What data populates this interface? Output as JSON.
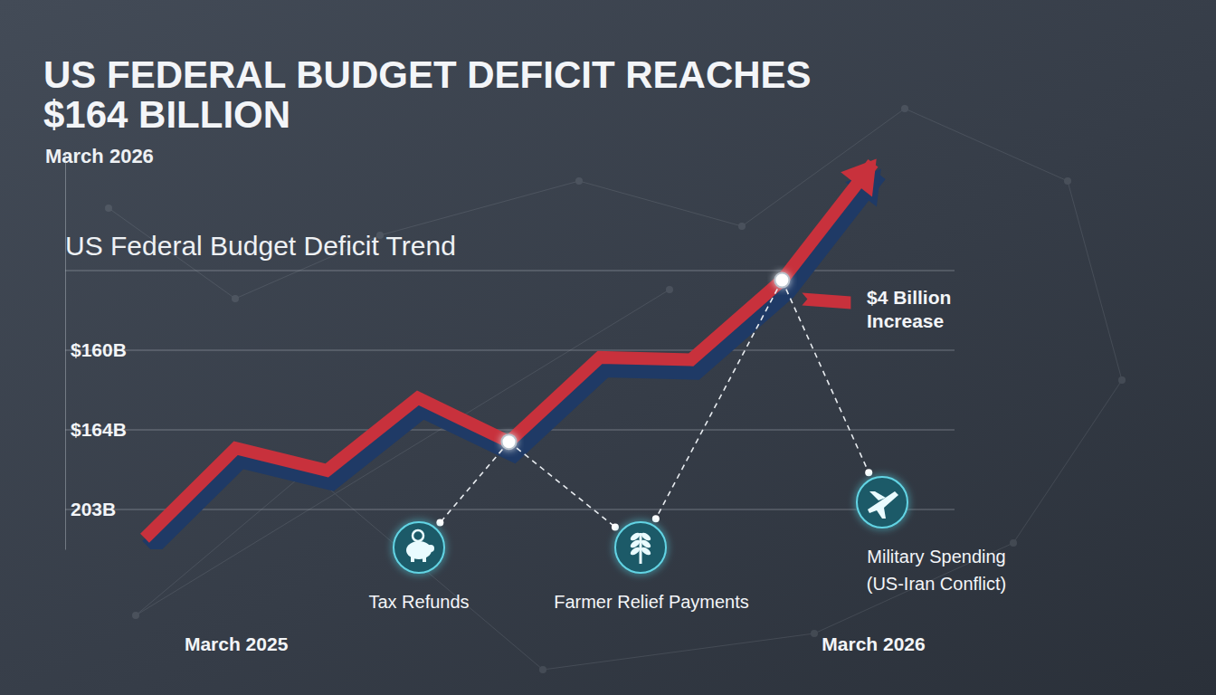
{
  "chart_data": {
    "type": "line",
    "title": [
      "US FEDERAL BUDGET DEFICIT REACHES",
      "$164 BILLION"
    ],
    "subtitle": "March 2026",
    "heading": "US Federal Budget Deficit Trend",
    "categories": [
      null,
      "March 2025",
      null,
      null,
      null,
      null,
      null,
      null,
      "March 2026"
    ],
    "values": [
      0.64,
      1.77,
      1.49,
      2.4,
      1.85,
      2.91,
      2.88,
      3.88,
      5.35
    ],
    "color": "#c8313c",
    "ylim": [
      0.5,
      5.5
    ],
    "yticks": [
      1,
      2,
      3,
      4
    ],
    "grid": true,
    "tick_labels": "x",
    "annotations": [
      {
        "text": [
          "$4 Billion",
          "Increase"
        ],
        "point": 7
      },
      {
        "text": [
          "Tax Refunds"
        ],
        "point": 4
      },
      {
        "text": [
          "Farmer Relief Payments"
        ],
        "points": [
          4,
          7
        ]
      },
      {
        "text": [
          "Military Spending",
          "(US-Iran Conflict)"
        ],
        "point": 7
      },
      {
        "text": [
          "$160B"
        ],
        "y": 3
      },
      {
        "text": [
          "$164B"
        ],
        "y": 2
      },
      {
        "text": [
          "203B"
        ],
        "y": 1
      }
    ]
  }
}
